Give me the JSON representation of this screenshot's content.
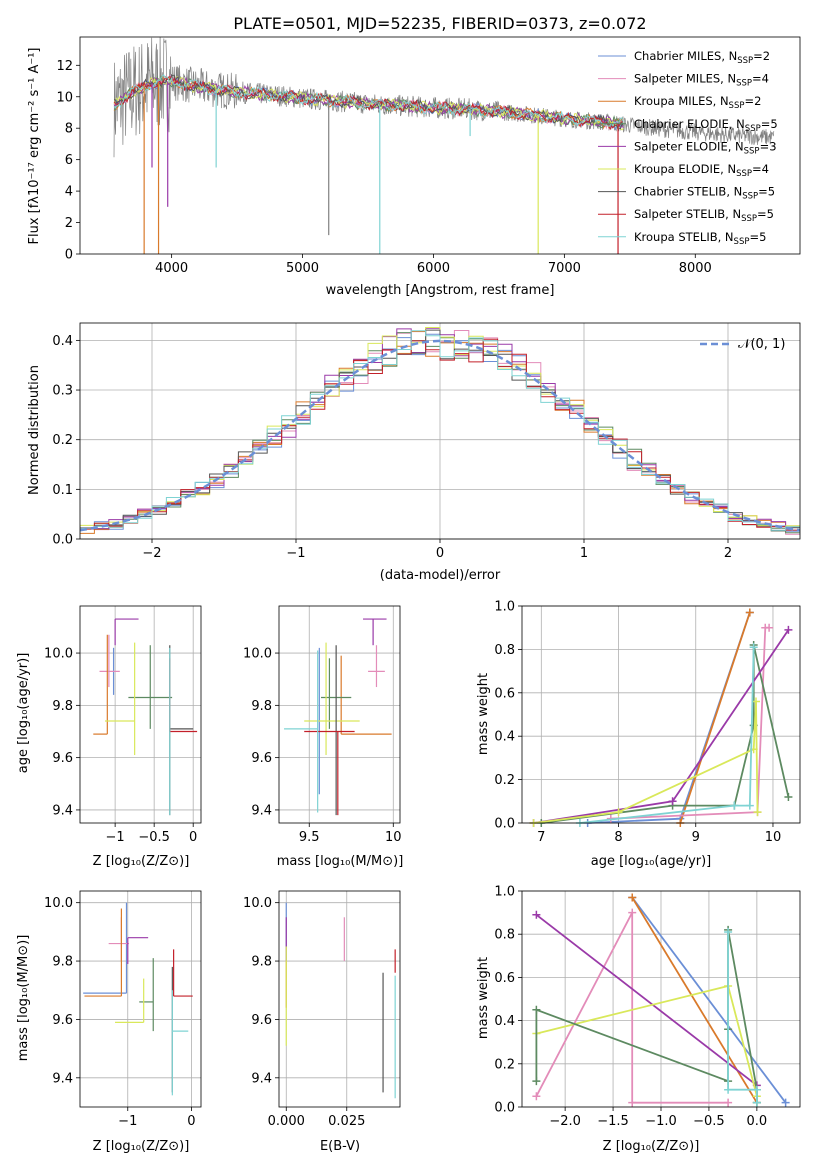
{
  "colors": {
    "chabrier_miles": "#6b8fd6",
    "salpeter_miles": "#e38cb9",
    "kroupa_miles": "#d97a2b",
    "chabrier_elodie": "#5d8a61",
    "salpeter_elodie": "#9a3aa8",
    "kroupa_elodie": "#d9e85a",
    "chabrier_stelib": "#555555",
    "salpeter_stelib": "#c3202a",
    "kroupa_stelib": "#7fd3d3",
    "data": "#808080",
    "normal": "#6b8fd6"
  },
  "chart_data": [
    {
      "id": "spectrum",
      "type": "line",
      "title": "PLATE=0501, MJD=52235, FIBERID=0373, z=0.072",
      "xlabel": "wavelength [Angstrom, rest frame]",
      "ylabel": "Flux [fλ10⁻¹⁷ erg cm⁻² s⁻¹ A⁻¹]",
      "xlim": [
        3300,
        8800
      ],
      "ylim": [
        0,
        13.8
      ],
      "xticks": [
        4000,
        5000,
        6000,
        7000,
        8000
      ],
      "yticks": [
        0,
        2,
        4,
        6,
        8,
        10,
        12
      ],
      "legend_position": "top-right",
      "continuum": {
        "x": [
          3560,
          3700,
          3850,
          4000,
          4100,
          4300,
          4500,
          4800,
          5000,
          5300,
          5600,
          6000,
          6300,
          6700,
          7000,
          7300,
          7500,
          7800,
          8200,
          8600
        ],
        "y": [
          9.4,
          10.3,
          10.9,
          11.0,
          10.8,
          10.5,
          10.3,
          10.1,
          9.9,
          9.7,
          9.5,
          9.3,
          9.2,
          8.9,
          8.6,
          8.4,
          8.2,
          7.9,
          7.6,
          7.4
        ]
      },
      "series": [
        {
          "name": "Chabrier MILES, N_SSP=2",
          "legend": "Chabrier MILES, N",
          "sub": "SSP",
          "suffix": "=2",
          "color_key": "chabrier_miles"
        },
        {
          "name": "Salpeter MILES, N_SSP=4",
          "legend": "Salpeter MILES, N",
          "sub": "SSP",
          "suffix": "=4",
          "color_key": "salpeter_miles"
        },
        {
          "name": "Kroupa MILES, N_SSP=2",
          "legend": "Kroupa MILES, N",
          "sub": "SSP",
          "suffix": "=2",
          "color_key": "kroupa_miles"
        },
        {
          "name": "Chabrier ELODIE, N_SSP=5",
          "legend": "Chabrier ELODIE, N",
          "sub": "SSP",
          "suffix": "=5",
          "color_key": "chabrier_elodie"
        },
        {
          "name": "Salpeter ELODIE, N_SSP=3",
          "legend": "Salpeter ELODIE, N",
          "sub": "SSP",
          "suffix": "=3",
          "color_key": "salpeter_elodie"
        },
        {
          "name": "Kroupa ELODIE, N_SSP=4",
          "legend": "Kroupa ELODIE, N",
          "sub": "SSP",
          "suffix": "=4",
          "color_key": "kroupa_elodie"
        },
        {
          "name": "Chabrier STELIB, N_SSP=5",
          "legend": "Chabrier STELIB, N",
          "sub": "SSP",
          "suffix": "=5",
          "color_key": "chabrier_stelib"
        },
        {
          "name": "Salpeter STELIB, N_SSP=5",
          "legend": "Salpeter STELIB, N",
          "sub": "SSP",
          "suffix": "=5",
          "color_key": "salpeter_stelib"
        },
        {
          "name": "Kroupa STELIB, N_SSP=5",
          "legend": "Kroupa STELIB, N",
          "sub": "SSP",
          "suffix": "=5",
          "color_key": "kroupa_stelib"
        }
      ],
      "drops": [
        {
          "x": 3790,
          "y": 0.0,
          "color_key": "kroupa_miles"
        },
        {
          "x": 3900,
          "y": 0.0,
          "color_key": "kroupa_miles"
        },
        {
          "x": 3850,
          "y": 5.5,
          "color_key": "salpeter_elodie"
        },
        {
          "x": 3970,
          "y": 3.0,
          "color_key": "salpeter_elodie"
        },
        {
          "x": 4340,
          "y": 5.5,
          "color_key": "kroupa_stelib"
        },
        {
          "x": 5200,
          "y": 1.2,
          "color_key": "data"
        },
        {
          "x": 5590,
          "y": 0.0,
          "color_key": "kroupa_stelib"
        },
        {
          "x": 6280,
          "y": 7.5,
          "color_key": "kroupa_stelib"
        },
        {
          "x": 6800,
          "y": 0.0,
          "color_key": "kroupa_elodie"
        },
        {
          "x": 7410,
          "y": 0.0,
          "color_key": "salpeter_stelib"
        }
      ]
    },
    {
      "id": "residuals",
      "type": "histogram",
      "xlabel": "(data-model)/error",
      "ylabel": "Normed distribution",
      "xlim": [
        -2.5,
        2.5
      ],
      "ylim": [
        0,
        0.435
      ],
      "xticks": [
        -2,
        -1,
        0,
        1,
        2
      ],
      "yticks": [
        0.0,
        0.1,
        0.2,
        0.3,
        0.4
      ],
      "bin_width": 0.1,
      "legend_position": "top-right",
      "legend_label": "𝒩(0, 1)",
      "reference_curve": "normal(0, 1)"
    },
    {
      "id": "age_vs_Z",
      "type": "errorbar",
      "xlabel": "Z [log₁₀(Z/Z⊙)]",
      "ylabel": "age  [log₁₀(age/yr)]",
      "xlim": [
        -1.45,
        0.1
      ],
      "ylim": [
        9.35,
        10.18
      ],
      "xticks": [
        -1,
        -0.5,
        0
      ],
      "yticks": [
        9.4,
        9.6,
        9.8,
        10.0
      ],
      "points": [
        {
          "key": "chabrier_miles",
          "x": -1.02,
          "xe": [
            0.0,
            0.0
          ],
          "y": 9.9,
          "ye": [
            0.06,
            0.12
          ]
        },
        {
          "key": "salpeter_miles",
          "x": -1.08,
          "xe": [
            0.12,
            0.14
          ],
          "y": 9.93,
          "ye": [
            0.06,
            0.14
          ]
        },
        {
          "key": "kroupa_miles",
          "x": -1.1,
          "xe": [
            0.18,
            0.0
          ],
          "y": 9.69,
          "ye": [
            0.0,
            0.38
          ]
        },
        {
          "key": "chabrier_elodie",
          "x": -0.55,
          "xe": [
            0.28,
            0.28
          ],
          "y": 9.83,
          "ye": [
            0.12,
            0.2
          ]
        },
        {
          "key": "salpeter_elodie",
          "x": -1.0,
          "xe": [
            0.0,
            0.3
          ],
          "y": 10.13,
          "ye": [
            0.1,
            0.0
          ]
        },
        {
          "key": "kroupa_elodie",
          "x": -0.75,
          "xe": [
            0.38,
            0.0
          ],
          "y": 9.74,
          "ye": [
            0.13,
            0.3
          ]
        },
        {
          "key": "chabrier_stelib",
          "x": -0.3,
          "xe": [
            0.0,
            0.3
          ],
          "y": 9.71,
          "ye": [
            0.33,
            0.32
          ]
        },
        {
          "key": "salpeter_stelib",
          "x": -0.3,
          "xe": [
            0.0,
            0.35
          ],
          "y": 9.7,
          "ye": [
            0.0,
            0.28
          ]
        },
        {
          "key": "kroupa_stelib",
          "x": -0.3,
          "xe": [
            0.0,
            0.0
          ],
          "y": 9.7,
          "ye": [
            0.32,
            0.32
          ]
        }
      ]
    },
    {
      "id": "age_vs_mass",
      "type": "errorbar",
      "xlabel": "mass [log₁₀(M/M⊙)]",
      "ylabel": "",
      "xlim": [
        9.32,
        10.04
      ],
      "ylim": [
        9.35,
        10.18
      ],
      "xticks": [
        9.5,
        10.0
      ],
      "yticks": [
        9.4,
        9.6,
        9.8,
        10.0
      ],
      "points": [
        {
          "key": "chabrier_miles",
          "x": 9.56,
          "xe": [
            0.0,
            0.0
          ],
          "y": 9.7,
          "ye": [
            0.24,
            0.32
          ]
        },
        {
          "key": "salpeter_miles",
          "x": 9.9,
          "xe": [
            0.05,
            0.05
          ],
          "y": 9.93,
          "ye": [
            0.06,
            0.1
          ]
        },
        {
          "key": "kroupa_miles",
          "x": 9.69,
          "xe": [
            0.0,
            0.3
          ],
          "y": 9.69,
          "ye": [
            0.0,
            0.3
          ]
        },
        {
          "key": "chabrier_elodie",
          "x": 9.62,
          "xe": [
            0.05,
            0.13
          ],
          "y": 9.83,
          "ye": [
            0.12,
            0.15
          ]
        },
        {
          "key": "salpeter_elodie",
          "x": 9.88,
          "xe": [
            0.06,
            0.08
          ],
          "y": 10.13,
          "ye": [
            0.1,
            0.0
          ]
        },
        {
          "key": "kroupa_elodie",
          "x": 9.6,
          "xe": [
            0.13,
            0.2
          ],
          "y": 9.74,
          "ye": [
            0.13,
            0.3
          ]
        },
        {
          "key": "chabrier_stelib",
          "x": 9.66,
          "xe": [
            0.0,
            0.0
          ],
          "y": 9.71,
          "ye": [
            0.33,
            0.32
          ]
        },
        {
          "key": "salpeter_stelib",
          "x": 9.67,
          "xe": [
            0.2,
            0.1
          ],
          "y": 9.7,
          "ye": [
            0.32,
            0.0
          ]
        },
        {
          "key": "kroupa_stelib",
          "x": 9.55,
          "xe": [
            0.2,
            0.0
          ],
          "y": 9.71,
          "ye": [
            0.32,
            0.3
          ]
        }
      ]
    },
    {
      "id": "massweight_vs_age",
      "type": "line",
      "xlabel": "age  [log₁₀(age/yr)]",
      "ylabel": "mass weight",
      "xlim": [
        6.75,
        10.35
      ],
      "ylim": [
        0,
        1
      ],
      "xticks": [
        7,
        8,
        9,
        10
      ],
      "yticks": [
        0.0,
        0.2,
        0.4,
        0.6,
        0.8,
        1.0
      ],
      "series": [
        {
          "key": "chabrier_miles",
          "x": [
            7.6,
            8.8,
            9.7
          ],
          "y": [
            0.0,
            0.02,
            0.97
          ]
        },
        {
          "key": "kroupa_miles",
          "x": [
            8.8,
            9.7
          ],
          "y": [
            0.0,
            0.97
          ]
        },
        {
          "key": "salpeter_miles",
          "x": [
            7.9,
            9.8,
            9.9,
            9.95
          ],
          "y": [
            0.02,
            0.05,
            0.9,
            0.9
          ]
        },
        {
          "key": "chabrier_elodie",
          "x": [
            7.0,
            8.7,
            9.5,
            9.75,
            9.75,
            10.2
          ],
          "y": [
            0.0,
            0.08,
            0.08,
            0.45,
            0.82,
            0.12
          ]
        },
        {
          "key": "salpeter_elodie",
          "x": [
            6.9,
            8.7,
            10.2
          ],
          "y": [
            0.0,
            0.1,
            0.89
          ]
        },
        {
          "key": "kroupa_elodie",
          "x": [
            6.9,
            8.0,
            9.75,
            9.78,
            9.8
          ],
          "y": [
            0.0,
            0.05,
            0.34,
            0.56,
            0.05
          ]
        },
        {
          "key": "kroupa_stelib",
          "x": [
            7.5,
            9.5,
            9.7,
            9.75
          ],
          "y": [
            0.0,
            0.08,
            0.08,
            0.81
          ]
        }
      ]
    },
    {
      "id": "mass_vs_Z",
      "type": "errorbar",
      "xlabel": "Z [log₁₀(Z/Z⊙)]",
      "ylabel": "mass [log₁₀(M/M⊙)]",
      "xlim": [
        -1.75,
        0.15
      ],
      "ylim": [
        9.3,
        10.04
      ],
      "xticks": [
        -1,
        0
      ],
      "yticks": [
        9.4,
        9.6,
        9.8,
        10.0
      ],
      "points": [
        {
          "key": "chabrier_miles",
          "x": -1.02,
          "xe": [
            0.68,
            0.0
          ],
          "y": 9.69,
          "ye": [
            0.0,
            0.31
          ]
        },
        {
          "key": "salpeter_miles",
          "x": -1.1,
          "xe": [
            0.2,
            0.12
          ],
          "y": 9.86,
          "ye": [
            0.06,
            0.09
          ]
        },
        {
          "key": "kroupa_miles",
          "x": -1.1,
          "xe": [
            0.58,
            0.0
          ],
          "y": 9.68,
          "ye": [
            0.0,
            0.3
          ]
        },
        {
          "key": "chabrier_elodie",
          "x": -0.6,
          "xe": [
            0.22,
            0.0
          ],
          "y": 9.66,
          "ye": [
            0.1,
            0.15
          ]
        },
        {
          "key": "salpeter_elodie",
          "x": -1.0,
          "xe": [
            0.0,
            0.32
          ],
          "y": 9.88,
          "ye": [
            0.09,
            0.0
          ]
        },
        {
          "key": "kroupa_elodie",
          "x": -0.75,
          "xe": [
            0.45,
            0.0
          ],
          "y": 9.59,
          "ye": [
            0.0,
            0.15
          ]
        },
        {
          "key": "chabrier_stelib",
          "x": -0.3,
          "xe": [
            0.0,
            0.0
          ],
          "y": 9.68,
          "ye": [
            0.33,
            0.1
          ]
        },
        {
          "key": "salpeter_stelib",
          "x": -0.28,
          "xe": [
            0.0,
            0.3
          ],
          "y": 9.68,
          "ye": [
            0.0,
            0.16
          ]
        },
        {
          "key": "kroupa_stelib",
          "x": -0.3,
          "xe": [
            0.0,
            0.25
          ],
          "y": 9.56,
          "ye": [
            0.22,
            0.14
          ]
        }
      ]
    },
    {
      "id": "mass_vs_ebv",
      "type": "errorbar",
      "xlabel": "E(B-V)",
      "ylabel": "",
      "xlim": [
        -0.003,
        0.047
      ],
      "ylim": [
        9.3,
        10.04
      ],
      "xticks": [
        0.0,
        0.025
      ],
      "xtick_labels": [
        "0.000",
        "0.025"
      ],
      "yticks": [
        9.4,
        9.6,
        9.8,
        10.0
      ],
      "points": [
        {
          "key": "chabrier_miles",
          "x": 0.0,
          "y": 9.98,
          "ye": [
            0.18,
            0.02
          ]
        },
        {
          "key": "salpeter_miles",
          "x": 0.024,
          "y": 9.87,
          "ye": [
            0.07,
            0.08
          ]
        },
        {
          "key": "kroupa_miles",
          "x": 0.0,
          "y": 9.7,
          "ye": [
            0.06,
            0.1
          ]
        },
        {
          "key": "salpeter_elodie",
          "x": 0.0,
          "y": 9.88,
          "ye": [
            0.08,
            0.07
          ]
        },
        {
          "key": "kroupa_elodie",
          "x": 0.0,
          "y": 9.6,
          "ye": [
            0.09,
            0.25
          ]
        },
        {
          "key": "chabrier_stelib",
          "x": 0.04,
          "y": 9.55,
          "ye": [
            0.2,
            0.21
          ]
        },
        {
          "key": "salpeter_stelib",
          "x": 0.045,
          "y": 9.76,
          "ye": [
            0.0,
            0.08
          ]
        },
        {
          "key": "kroupa_stelib",
          "x": 0.045,
          "y": 9.55,
          "ye": [
            0.22,
            0.2
          ]
        }
      ]
    },
    {
      "id": "massweight_vs_Z",
      "type": "line",
      "xlabel": "Z [log₁₀(Z/Z⊙)]",
      "ylabel": "mass weight",
      "xlim": [
        -2.45,
        0.45
      ],
      "ylim": [
        0,
        1
      ],
      "xticks": [
        -2.0,
        -1.5,
        -1.0,
        -0.5,
        0.0
      ],
      "xtick_labels": [
        "−2.0",
        "−1.5",
        "−1.0",
        "−0.5",
        "0.0"
      ],
      "yticks": [
        0.0,
        0.2,
        0.4,
        0.6,
        0.8,
        1.0
      ],
      "series": [
        {
          "key": "chabrier_miles",
          "x": [
            -1.3,
            0.3
          ],
          "y": [
            0.97,
            0.02
          ]
        },
        {
          "key": "kroupa_miles",
          "x": [
            -1.3,
            0.0
          ],
          "y": [
            0.97,
            0.02
          ]
        },
        {
          "key": "salpeter_miles",
          "x": [
            -2.3,
            -1.3,
            -1.3,
            -0.3
          ],
          "y": [
            0.05,
            0.9,
            0.02,
            0.02
          ]
        },
        {
          "key": "salpeter_elodie",
          "x": [
            -2.3,
            0.0
          ],
          "y": [
            0.89,
            0.1
          ]
        },
        {
          "key": "kroupa_elodie",
          "x": [
            -2.3,
            -0.3,
            0.0
          ],
          "y": [
            0.34,
            0.56,
            0.05
          ]
        },
        {
          "key": "chabrier_elodie",
          "x": [
            -2.3,
            -2.3,
            -0.3,
            -0.3,
            -0.3,
            0.0,
            0.0
          ],
          "y": [
            0.12,
            0.45,
            0.12,
            0.36,
            0.82,
            0.08,
            0.02
          ]
        },
        {
          "key": "kroupa_stelib",
          "x": [
            -0.3,
            -0.3,
            0.0,
            0.0
          ],
          "y": [
            0.81,
            0.08,
            0.08,
            0.02
          ]
        }
      ]
    }
  ]
}
